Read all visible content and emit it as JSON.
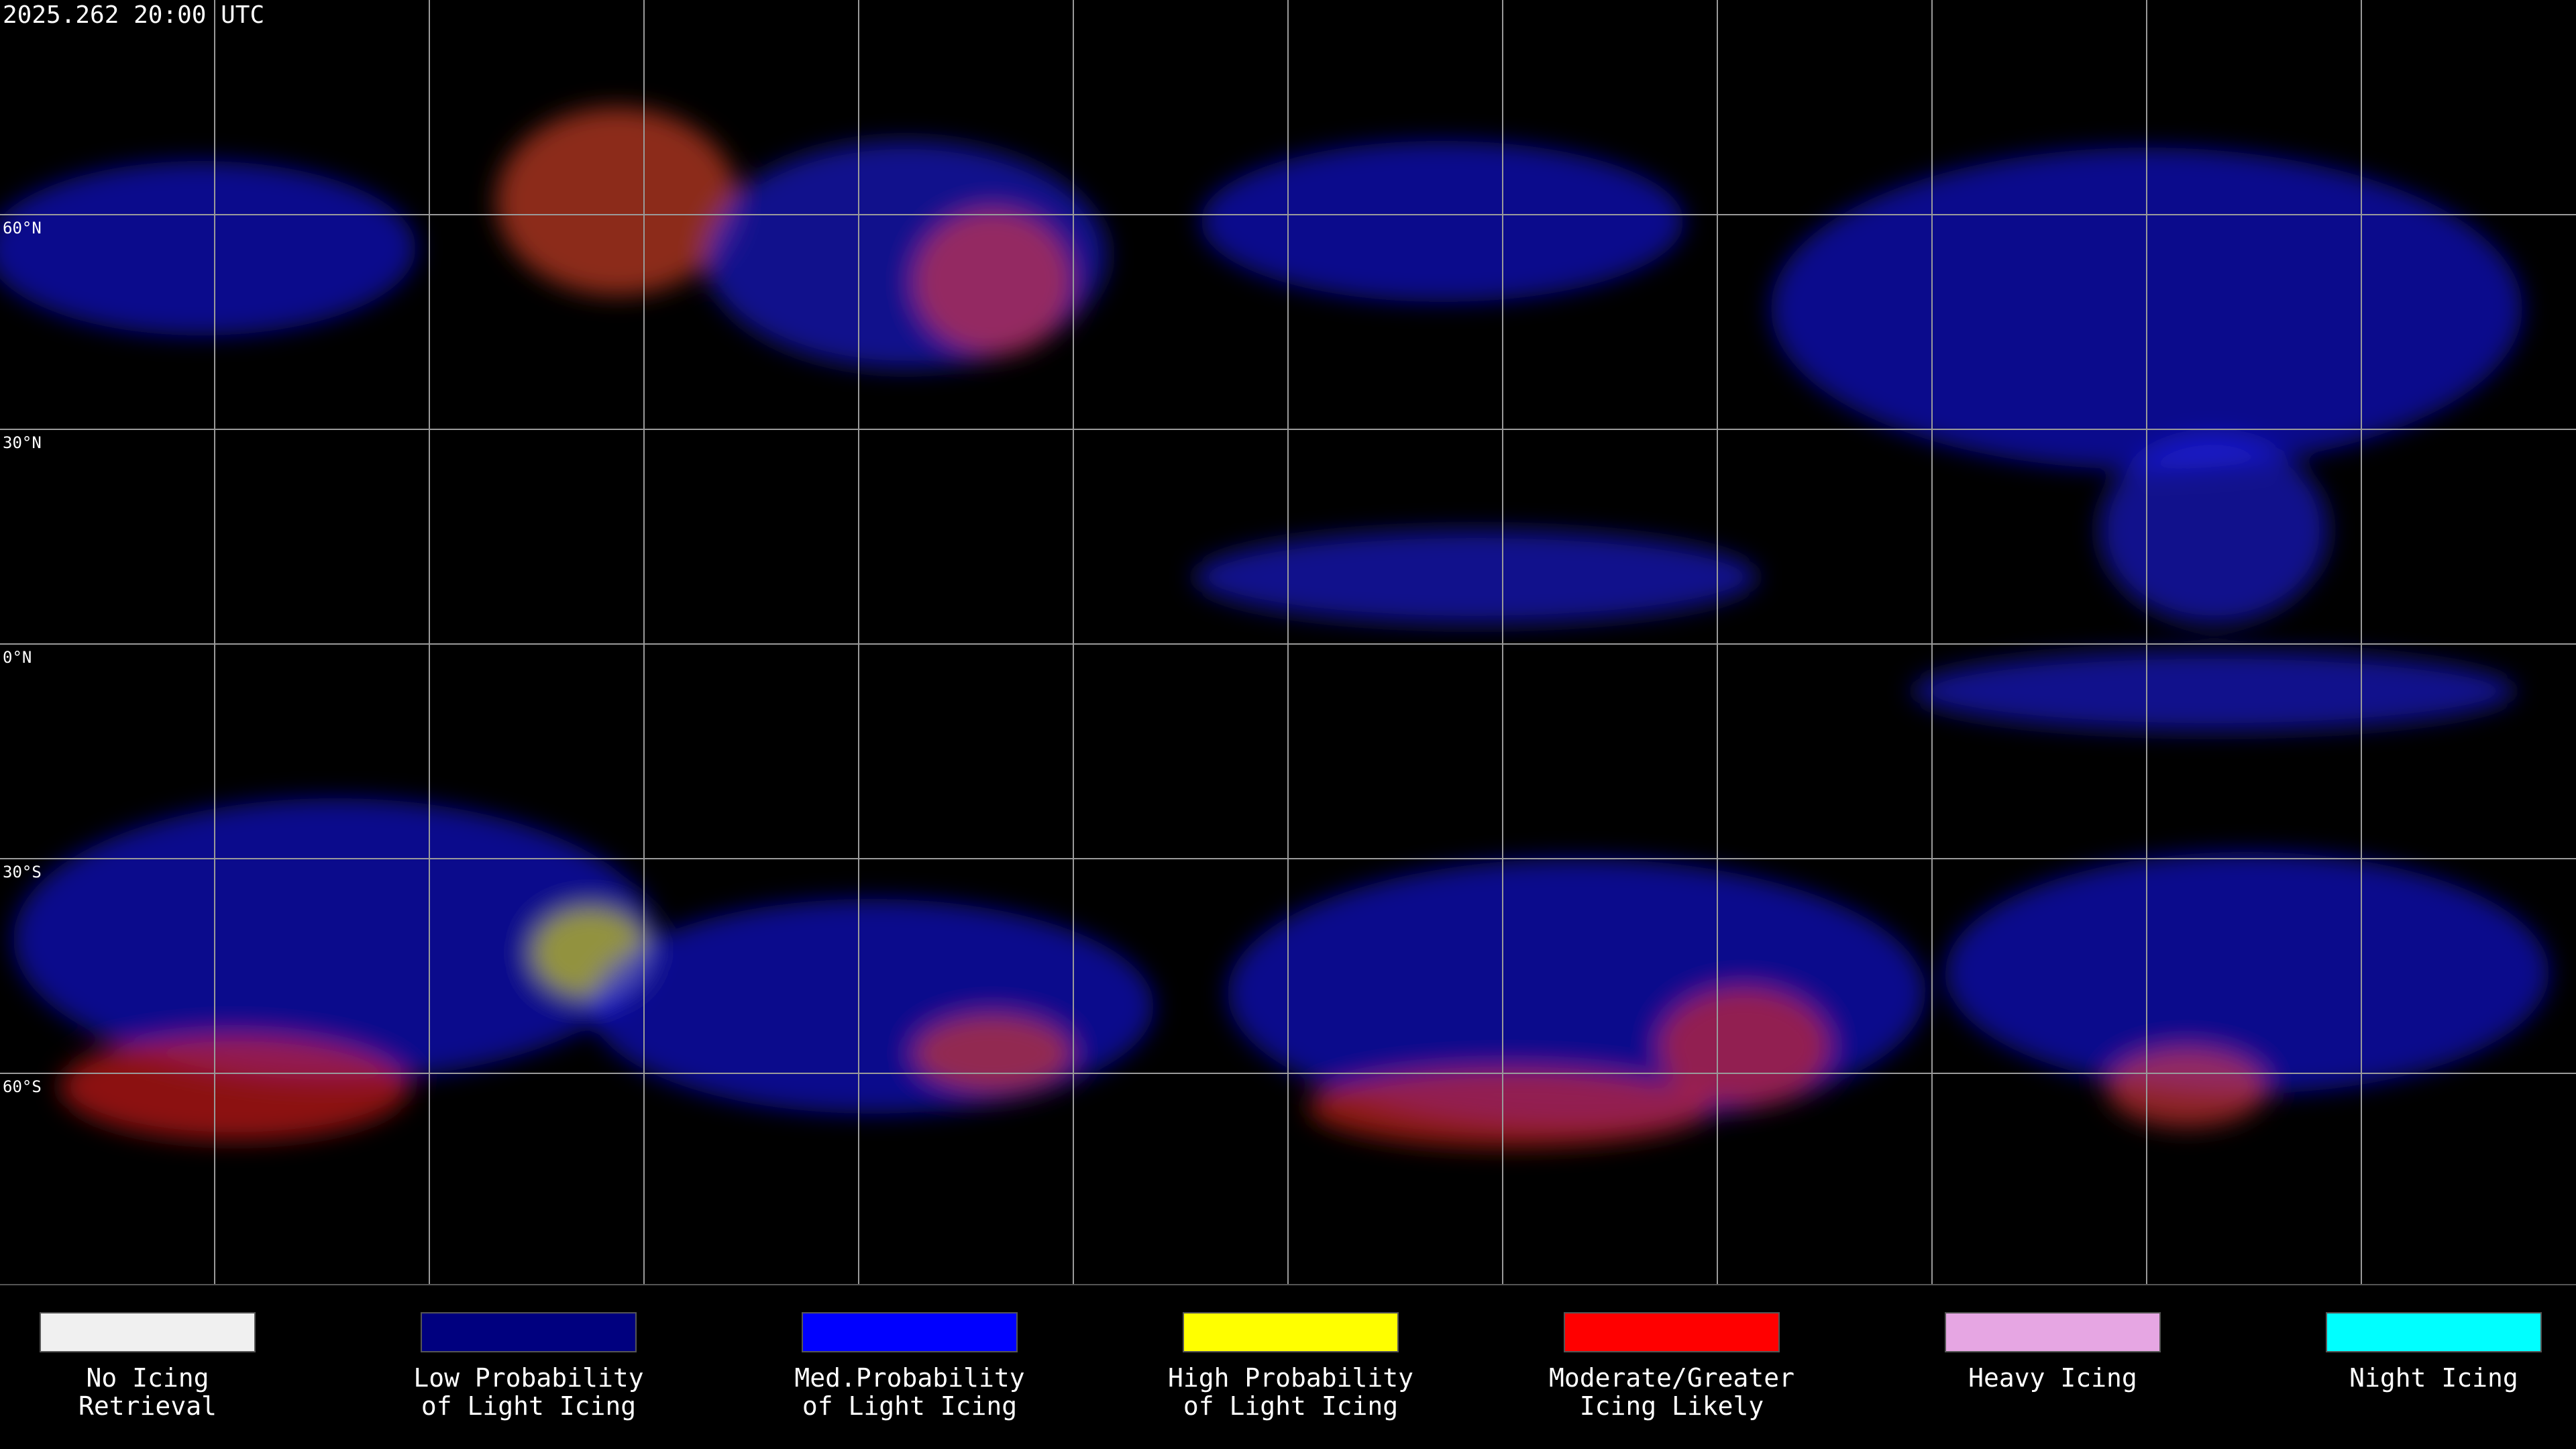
{
  "timestamp": "2025.262 20:00 UTC",
  "grid": {
    "lat_labels": [
      "60°N",
      "30°N",
      "0°N",
      "30°S",
      "60°S"
    ]
  },
  "legend": {
    "items": [
      {
        "lines": [
          "No Icing",
          "Retrieval"
        ],
        "color": "#f0f0f0"
      },
      {
        "lines": [
          "Low Probability",
          "of Light Icing"
        ],
        "color": "#00007f"
      },
      {
        "lines": [
          "Med.Probability",
          "of Light Icing"
        ],
        "color": "#0000ff"
      },
      {
        "lines": [
          "High Probability",
          "of Light Icing"
        ],
        "color": "#ffff00"
      },
      {
        "lines": [
          "Moderate/Greater",
          "Icing Likely"
        ],
        "color": "#ff0000"
      },
      {
        "lines": [
          "Heavy Icing"
        ],
        "color": "#e6a6e3"
      },
      {
        "lines": [
          "Night Icing"
        ],
        "color": "#00ffff"
      }
    ]
  }
}
